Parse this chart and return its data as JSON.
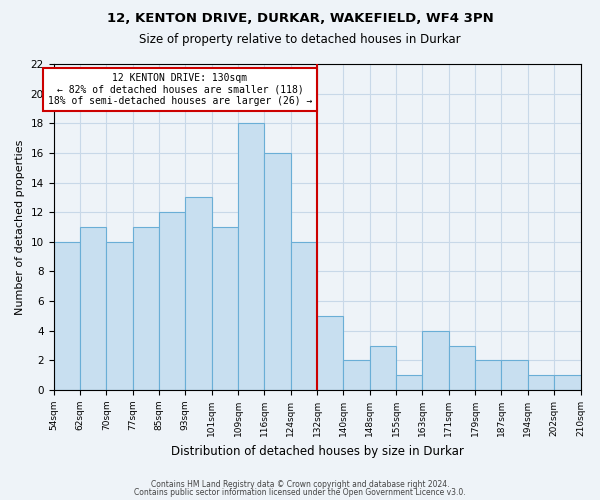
{
  "title1": "12, KENTON DRIVE, DURKAR, WAKEFIELD, WF4 3PN",
  "title2": "Size of property relative to detached houses in Durkar",
  "xlabel": "Distribution of detached houses by size in Durkar",
  "ylabel": "Number of detached properties",
  "bar_labels": [
    "54sqm",
    "62sqm",
    "70sqm",
    "77sqm",
    "85sqm",
    "93sqm",
    "101sqm",
    "109sqm",
    "116sqm",
    "124sqm",
    "132sqm",
    "140sqm",
    "148sqm",
    "155sqm",
    "163sqm",
    "171sqm",
    "179sqm",
    "187sqm",
    "194sqm",
    "202sqm",
    "210sqm"
  ],
  "bar_values": [
    10,
    11,
    10,
    11,
    12,
    13,
    11,
    18,
    16,
    10,
    5,
    2,
    3,
    1,
    4,
    3,
    2,
    2,
    1,
    1
  ],
  "bar_color": "#c8dff0",
  "bar_edge_color": "#6aaed6",
  "annotation_title": "12 KENTON DRIVE: 130sqm",
  "annotation_line1": "← 82% of detached houses are smaller (118)",
  "annotation_line2": "18% of semi-detached houses are larger (26) →",
  "annotation_box_edge": "#cc0000",
  "vline_color": "#cc0000",
  "ylim": [
    0,
    22
  ],
  "yticks": [
    0,
    2,
    4,
    6,
    8,
    10,
    12,
    14,
    16,
    18,
    20,
    22
  ],
  "grid_color": "#c8d8e8",
  "bg_color": "#eef3f8",
  "footnote1": "Contains HM Land Registry data © Crown copyright and database right 2024.",
  "footnote2": "Contains public sector information licensed under the Open Government Licence v3.0."
}
